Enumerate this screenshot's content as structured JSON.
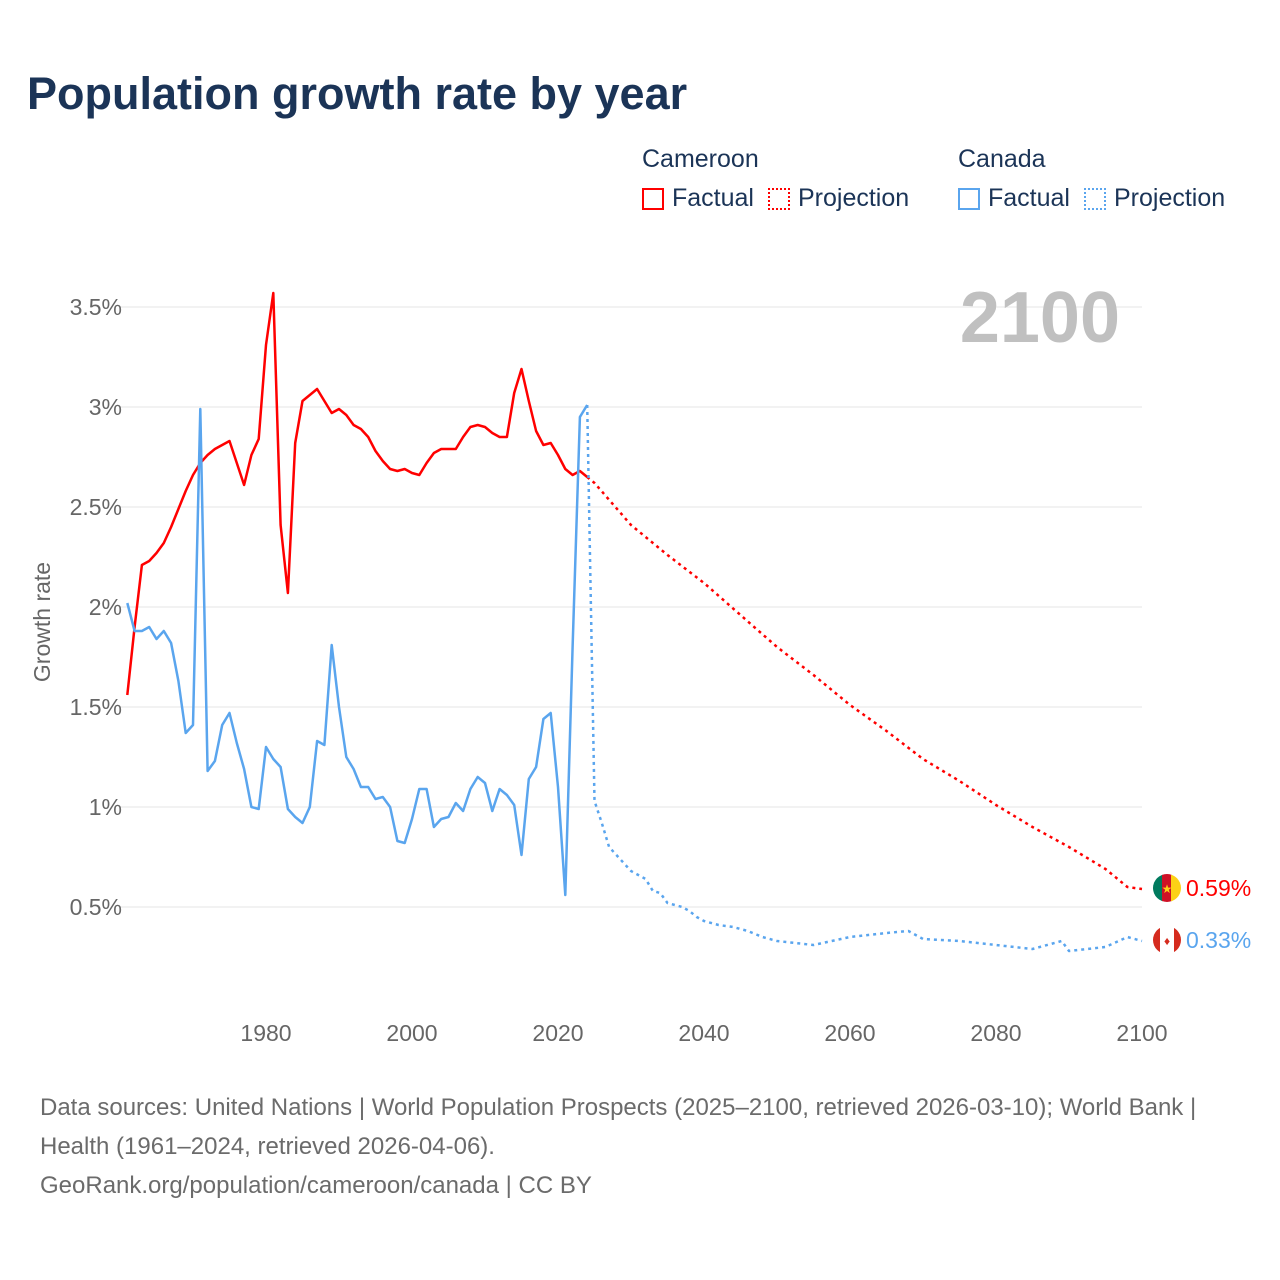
{
  "title": "Population growth rate by year",
  "year_label": "2100",
  "legend": [
    {
      "country": "Cameroon",
      "factual": "Factual",
      "projection": "Projection",
      "color": "#ff0000"
    },
    {
      "country": "Canada",
      "factual": "Factual",
      "projection": "Projection",
      "color": "#5aa5ee"
    }
  ],
  "end_labels": {
    "cameroon": "0.59%",
    "canada": "0.33%"
  },
  "footer": {
    "sources": "Data sources: United Nations | World Population Prospects (2025–2100, retrieved 2026-03-10); World Bank | Health (1961–2024, retrieved 2026-04-06).",
    "link": "GeoRank.org/population/cameroon/canada | CC BY"
  },
  "chart_data": {
    "type": "line",
    "title": "Population growth rate by year",
    "xlabel": "",
    "ylabel": "Growth rate",
    "xlim": [
      1961,
      2100
    ],
    "ylim": [
      0,
      3.6
    ],
    "x_ticks": [
      1980,
      2000,
      2020,
      2040,
      2060,
      2080,
      2100
    ],
    "y_ticks": [
      0.5,
      1,
      1.5,
      2,
      2.5,
      3,
      3.5
    ],
    "y_tick_labels": [
      "0.5%",
      "1%",
      "1.5%",
      "2%",
      "2.5%",
      "3%",
      "3.5%"
    ],
    "grid": true,
    "legend_position": "top-right",
    "series": [
      {
        "name": "Cameroon Factual",
        "style": "solid",
        "color": "#ff0000",
        "x": [
          1961,
          1962,
          1963,
          1964,
          1965,
          1966,
          1967,
          1968,
          1969,
          1970,
          1971,
          1972,
          1973,
          1974,
          1975,
          1976,
          1977,
          1978,
          1979,
          1980,
          1981,
          1982,
          1983,
          1984,
          1985,
          1986,
          1987,
          1988,
          1989,
          1990,
          1991,
          1992,
          1993,
          1994,
          1995,
          1996,
          1997,
          1998,
          1999,
          2000,
          2001,
          2002,
          2003,
          2004,
          2005,
          2006,
          2007,
          2008,
          2009,
          2010,
          2011,
          2012,
          2013,
          2014,
          2015,
          2016,
          2017,
          2018,
          2019,
          2020,
          2021,
          2022,
          2023,
          2024
        ],
        "y": [
          1.56,
          1.9,
          2.21,
          2.23,
          2.27,
          2.32,
          2.4,
          2.49,
          2.58,
          2.66,
          2.72,
          2.76,
          2.79,
          2.81,
          2.83,
          2.72,
          2.61,
          2.76,
          2.84,
          3.31,
          3.57,
          2.41,
          2.07,
          2.82,
          3.03,
          3.06,
          3.09,
          3.03,
          2.97,
          2.99,
          2.96,
          2.91,
          2.89,
          2.85,
          2.78,
          2.73,
          2.69,
          2.68,
          2.69,
          2.67,
          2.66,
          2.72,
          2.77,
          2.79,
          2.79,
          2.79,
          2.85,
          2.9,
          2.91,
          2.9,
          2.87,
          2.85,
          2.85,
          3.07,
          3.19,
          3.03,
          2.88,
          2.81,
          2.82,
          2.76,
          2.69,
          2.66,
          2.68,
          2.65
        ]
      },
      {
        "name": "Cameroon Projection",
        "style": "dotted",
        "color": "#ff0000",
        "x": [
          2024,
          2025,
          2030,
          2035,
          2040,
          2045,
          2050,
          2055,
          2060,
          2065,
          2070,
          2075,
          2080,
          2085,
          2090,
          2095,
          2098,
          2100
        ],
        "y": [
          2.65,
          2.62,
          2.41,
          2.26,
          2.12,
          1.96,
          1.8,
          1.66,
          1.51,
          1.38,
          1.24,
          1.13,
          1.01,
          0.9,
          0.8,
          0.69,
          0.6,
          0.59
        ]
      },
      {
        "name": "Canada Factual",
        "style": "solid",
        "color": "#5aa5ee",
        "x": [
          1961,
          1962,
          1963,
          1964,
          1965,
          1966,
          1967,
          1968,
          1969,
          1970,
          1971,
          1972,
          1973,
          1974,
          1975,
          1976,
          1977,
          1978,
          1979,
          1980,
          1981,
          1982,
          1983,
          1984,
          1985,
          1986,
          1987,
          1988,
          1989,
          1990,
          1991,
          1992,
          1993,
          1994,
          1995,
          1996,
          1997,
          1998,
          1999,
          2000,
          2001,
          2002,
          2003,
          2004,
          2005,
          2006,
          2007,
          2008,
          2009,
          2010,
          2011,
          2012,
          2013,
          2014,
          2015,
          2016,
          2017,
          2018,
          2019,
          2020,
          2021,
          2022,
          2023,
          2024
        ],
        "y": [
          2.02,
          1.88,
          1.88,
          1.9,
          1.84,
          1.88,
          1.82,
          1.63,
          1.37,
          1.41,
          2.99,
          1.18,
          1.23,
          1.41,
          1.47,
          1.32,
          1.19,
          1.0,
          0.99,
          1.3,
          1.24,
          1.2,
          0.99,
          0.95,
          0.92,
          1.0,
          1.33,
          1.31,
          1.81,
          1.5,
          1.25,
          1.19,
          1.1,
          1.1,
          1.04,
          1.05,
          1.0,
          0.83,
          0.82,
          0.94,
          1.09,
          1.09,
          0.9,
          0.94,
          0.95,
          1.02,
          0.98,
          1.09,
          1.15,
          1.12,
          0.98,
          1.09,
          1.06,
          1.01,
          0.76,
          1.14,
          1.2,
          1.44,
          1.47,
          1.1,
          0.56,
          1.8,
          2.95,
          3.01
        ]
      },
      {
        "name": "Canada Projection",
        "style": "dotted",
        "color": "#5aa5ee",
        "x": [
          2024,
          2025,
          2026,
          2027,
          2028,
          2029,
          2030,
          2031,
          2032,
          2033,
          2034,
          2035,
          2036,
          2037,
          2038,
          2039,
          2040,
          2042,
          2044,
          2046,
          2048,
          2050,
          2055,
          2060,
          2065,
          2068,
          2070,
          2075,
          2080,
          2085,
          2089,
          2090,
          2095,
          2098,
          2100
        ],
        "y": [
          3.01,
          1.03,
          0.92,
          0.8,
          0.76,
          0.72,
          0.68,
          0.66,
          0.64,
          0.58,
          0.57,
          0.52,
          0.51,
          0.5,
          0.48,
          0.45,
          0.43,
          0.41,
          0.4,
          0.38,
          0.35,
          0.33,
          0.31,
          0.35,
          0.37,
          0.38,
          0.34,
          0.33,
          0.31,
          0.29,
          0.33,
          0.28,
          0.3,
          0.35,
          0.33
        ]
      }
    ]
  }
}
